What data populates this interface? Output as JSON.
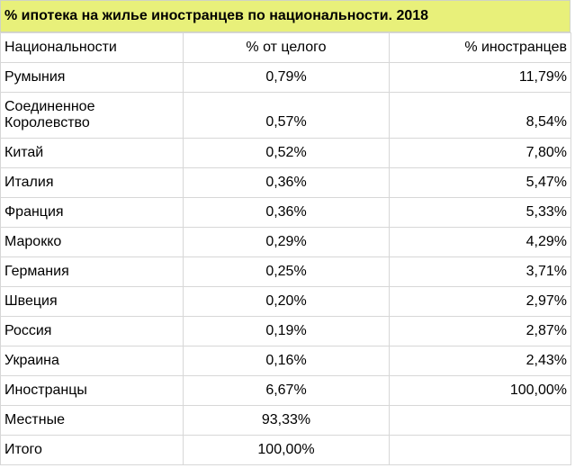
{
  "title": "% ипотека на жилье иностранцев по национальности. 2018",
  "header": {
    "nationality": "Национальности",
    "share_of_total": "% от целого",
    "share_of_foreigners": "% иностранцев"
  },
  "rows": [
    {
      "nationality": "Румыния",
      "share_of_total": "0,79%",
      "share_of_foreigners": "11,79%"
    },
    {
      "nationality": "Соединенное\nКоролевство",
      "share_of_total": "0,57%",
      "share_of_foreigners": "8,54%"
    },
    {
      "nationality": "Китай",
      "share_of_total": "0,52%",
      "share_of_foreigners": "7,80%"
    },
    {
      "nationality": "Италия",
      "share_of_total": "0,36%",
      "share_of_foreigners": "5,47%"
    },
    {
      "nationality": "Франция",
      "share_of_total": "0,36%",
      "share_of_foreigners": "5,33%"
    },
    {
      "nationality": "Марокко",
      "share_of_total": "0,29%",
      "share_of_foreigners": "4,29%"
    },
    {
      "nationality": "Германия",
      "share_of_total": "0,25%",
      "share_of_foreigners": "3,71%"
    },
    {
      "nationality": "Швеция",
      "share_of_total": "0,20%",
      "share_of_foreigners": "2,97%"
    },
    {
      "nationality": "Россия",
      "share_of_total": "0,19%",
      "share_of_foreigners": "2,87%"
    },
    {
      "nationality": "Украина",
      "share_of_total": "0,16%",
      "share_of_foreigners": "2,43%"
    },
    {
      "nationality": "Иностранцы",
      "share_of_total": "6,67%",
      "share_of_foreigners": "100,00%"
    },
    {
      "nationality": "Местные",
      "share_of_total": "93,33%",
      "share_of_foreigners": ""
    },
    {
      "nationality": "Итого",
      "share_of_total": "100,00%",
      "share_of_foreigners": ""
    }
  ],
  "colors": {
    "title_background": "#e8f07a",
    "grid_line": "#d7d7d7"
  }
}
